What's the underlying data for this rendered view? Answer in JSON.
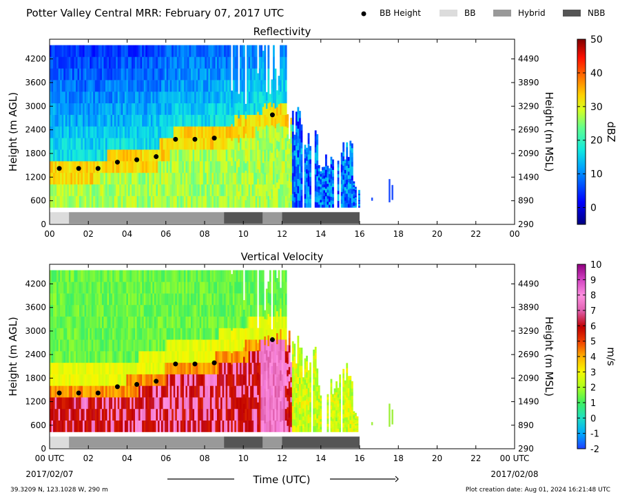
{
  "header": {
    "title": "Potter Valley Central MRR:  February 07, 2017 UTC",
    "legend": [
      {
        "label": "BB Height",
        "kind": "dot",
        "color": "#000000"
      },
      {
        "label": "BB",
        "kind": "box",
        "color": "#dcdcdc"
      },
      {
        "label": "Hybrid",
        "kind": "box",
        "color": "#999999"
      },
      {
        "label": "NBB",
        "kind": "box",
        "color": "#555555"
      }
    ]
  },
  "footer": {
    "location": "39.3209 N, 123.1028 W, 290 m",
    "created": "Plot creation date: Aug 01, 2024 16:21:48 UTC",
    "xlabel": "Time (UTC)",
    "date_start": "2017/02/07",
    "date_end": "2017/02/08"
  },
  "chart_data": [
    {
      "type": "heatmap",
      "title": "Reflectivity",
      "ylabel": "Height (m AGL)",
      "ylabel_right": "Height (m MSL)",
      "colorbar_label": "dBZ",
      "xlim": [
        0,
        24
      ],
      "ylim": [
        0,
        4700
      ],
      "x_ticks": [
        "00",
        "02",
        "04",
        "06",
        "08",
        "10",
        "12",
        "14",
        "16",
        "18",
        "20",
        "22",
        "00"
      ],
      "y_ticks": [
        "0",
        "600",
        "1200",
        "1800",
        "2400",
        "3000",
        "3600",
        "4200"
      ],
      "y_ticks_right": [
        "290",
        "890",
        "1490",
        "2090",
        "2690",
        "3290",
        "3890",
        "4490"
      ],
      "colorbar_range": [
        -5,
        50
      ],
      "colorbar_ticks": [
        "0",
        "10",
        "20",
        "30",
        "40",
        "50"
      ],
      "bb_height": {
        "x": [
          0.5,
          1.5,
          2.5,
          3.5,
          4.5,
          5.5,
          6.5,
          7.5,
          8.5,
          11.5
        ],
        "y": [
          1420,
          1420,
          1420,
          1580,
          1640,
          1720,
          2160,
          2160,
          2190,
          2780
        ]
      },
      "bb_type_bar": [
        {
          "start": 0,
          "end": 1,
          "type": "BB"
        },
        {
          "start": 1,
          "end": 9,
          "type": "Hybrid"
        },
        {
          "start": 9,
          "end": 11,
          "type": "NBB"
        },
        {
          "start": 11,
          "end": 12,
          "type": "Hybrid"
        },
        {
          "start": 12,
          "end": 16,
          "type": "NBB"
        }
      ]
    },
    {
      "type": "heatmap",
      "title": "Vertical Velocity",
      "ylabel": "Height (m AGL)",
      "ylabel_right": "Height (m MSL)",
      "colorbar_label": "m/s",
      "xlim": [
        0,
        24
      ],
      "ylim": [
        0,
        4700
      ],
      "x_ticks": [
        "00 UTC",
        "02",
        "04",
        "06",
        "08",
        "10",
        "12",
        "14",
        "16",
        "18",
        "20",
        "22",
        "00 UTC"
      ],
      "y_ticks": [
        "0",
        "600",
        "1200",
        "1800",
        "2400",
        "3000",
        "3600",
        "4200"
      ],
      "y_ticks_right": [
        "290",
        "890",
        "1490",
        "2090",
        "2690",
        "3290",
        "3890",
        "4490"
      ],
      "colorbar_range": [
        -2,
        10
      ],
      "colorbar_ticks": [
        "-2",
        "-1",
        "0",
        "1",
        "2",
        "3",
        "4",
        "5",
        "6",
        "7",
        "8",
        "9",
        "10"
      ],
      "bb_height": {
        "x": [
          0.5,
          1.5,
          2.5,
          3.5,
          4.5,
          5.5,
          6.5,
          7.5,
          8.5,
          11.5
        ],
        "y": [
          1420,
          1420,
          1420,
          1580,
          1640,
          1720,
          2160,
          2160,
          2190,
          2780
        ]
      },
      "bb_type_bar": [
        {
          "start": 0,
          "end": 1,
          "type": "BB"
        },
        {
          "start": 1,
          "end": 9,
          "type": "Hybrid"
        },
        {
          "start": 9,
          "end": 11,
          "type": "NBB"
        },
        {
          "start": 11,
          "end": 12,
          "type": "Hybrid"
        },
        {
          "start": 12,
          "end": 16,
          "type": "NBB"
        }
      ]
    }
  ]
}
